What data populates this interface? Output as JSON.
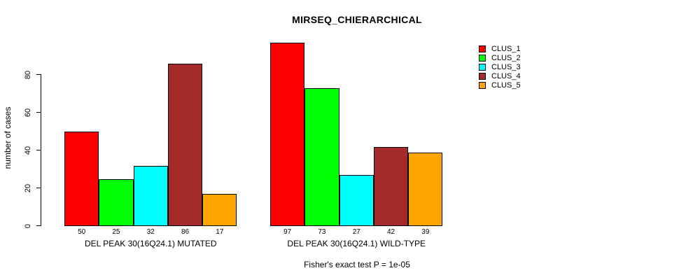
{
  "chart_data": {
    "type": "bar",
    "title": "MIRSEQ_CHIERARCHICAL",
    "ylabel": "number of cases",
    "ylim": [
      0,
      100
    ],
    "y_ticks": [
      0,
      20,
      40,
      60,
      80
    ],
    "grid": false,
    "legend_position": "right",
    "series": [
      {
        "name": "CLUS_1",
        "color": "#ff0000"
      },
      {
        "name": "CLUS_2",
        "color": "#00ff00"
      },
      {
        "name": "CLUS_3",
        "color": "#00ffff"
      },
      {
        "name": "CLUS_4",
        "color": "#a52a2a"
      },
      {
        "name": "CLUS_5",
        "color": "#ffa500"
      }
    ],
    "groups": [
      {
        "label": "DEL PEAK 30(16Q24.1) MUTATED",
        "values": [
          50,
          25,
          32,
          86,
          17
        ]
      },
      {
        "label": "DEL PEAK 30(16Q24.1) WILD-TYPE",
        "values": [
          97,
          73,
          27,
          42,
          39
        ]
      }
    ],
    "annotation": "Fisher's exact test P = 1e-05",
    "axis_color": "#000000",
    "text_color": "#000000",
    "background": "#ffffff"
  }
}
